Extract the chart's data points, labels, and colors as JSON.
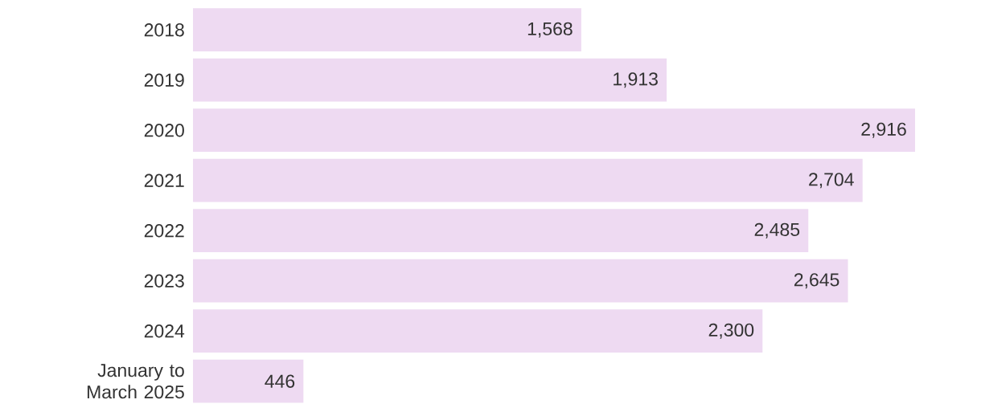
{
  "chart_data": {
    "type": "bar",
    "orientation": "horizontal",
    "categories": [
      "2018",
      "2019",
      "2020",
      "2021",
      "2022",
      "2023",
      "2024",
      "January to March 2025"
    ],
    "values": [
      1568,
      1913,
      2916,
      2704,
      2485,
      2645,
      2300,
      446
    ],
    "value_labels": [
      "1,568",
      "1,913",
      "2,916",
      "2,704",
      "2,485",
      "2,645",
      "2,300",
      "446"
    ],
    "color": "#eedaf2",
    "tick_labels": "y"
  }
}
